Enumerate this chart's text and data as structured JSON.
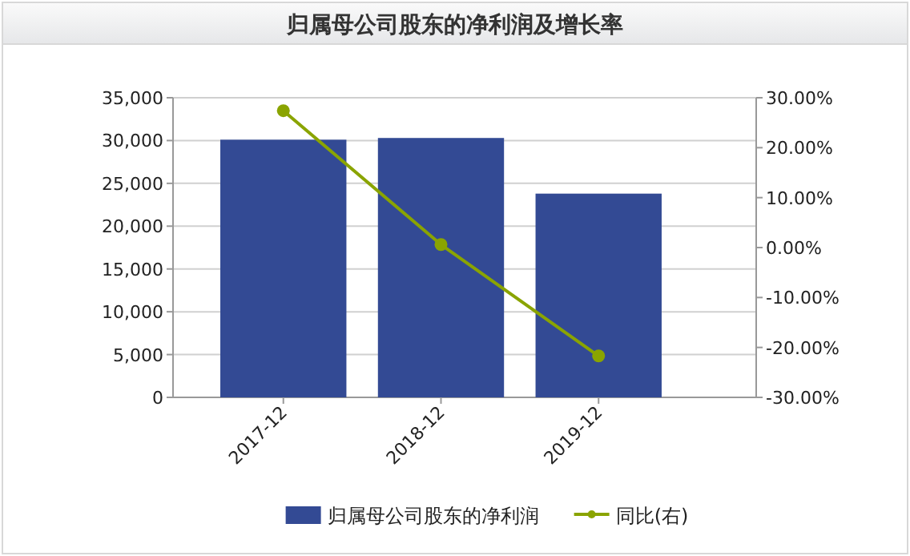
{
  "chart_data": {
    "type": "bar",
    "title": "归属母公司股东的净利润及增长率",
    "categories": [
      "2017-12",
      "2018-12",
      "2019-12"
    ],
    "series": [
      {
        "name": "归属母公司股东的净利润",
        "color": "#334a94",
        "values": [
          30100,
          30300,
          23800
        ]
      },
      {
        "name": "同比(右)",
        "color": "#8aa400",
        "type": "line",
        "axis": "y2",
        "marker": "circle",
        "values": [
          27.4,
          0.6,
          -21.7
        ]
      }
    ],
    "ylim": [
      0,
      35000
    ],
    "yticks": [
      0,
      {
        "value": 5000,
        "label": "5,000"
      },
      {
        "value": 10000,
        "label": "10,000"
      },
      {
        "value": 15000,
        "label": "15,000"
      },
      {
        "value": 20000,
        "label": "20,000"
      },
      {
        "value": 25000,
        "label": "25,000"
      },
      {
        "value": 30000,
        "label": "30,000"
      },
      {
        "value": 35000,
        "label": "35,000"
      }
    ],
    "y2lim": [
      -30,
      30
    ],
    "y2ticks": [
      {
        "value": -30,
        "label": "-30.00%"
      },
      {
        "value": -20,
        "label": "-20.00%"
      },
      {
        "value": -10,
        "label": "-10.00%"
      },
      {
        "value": 0,
        "label": "0.00%"
      },
      {
        "value": 10,
        "label": "10.00%"
      },
      {
        "value": 20,
        "label": "20.00%"
      },
      {
        "value": 30,
        "label": "30.00%"
      }
    ],
    "grid": "y",
    "legend": "bottom"
  }
}
